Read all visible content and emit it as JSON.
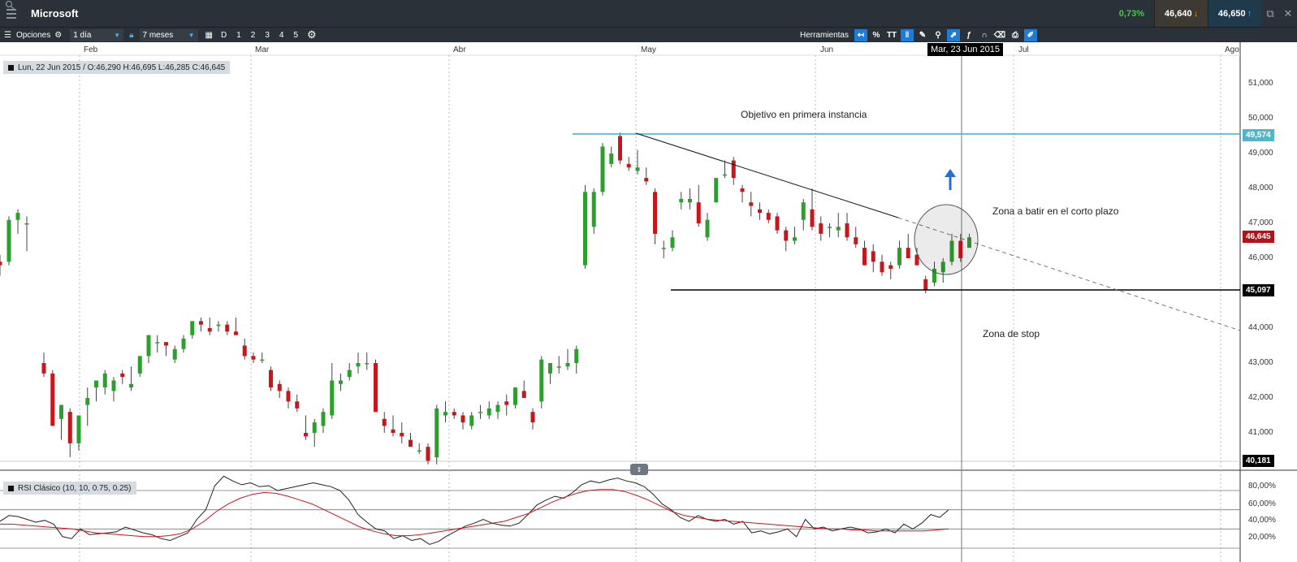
{
  "title_bar": {
    "symbol": "Microsoft",
    "change_pct": "0,73%",
    "bid": "46,640",
    "ask": "46,650"
  },
  "toolbar": {
    "options_label": "Opciones",
    "interval_value": "1 día",
    "range_value": "7 meses",
    "period_buttons": [
      "D",
      "1",
      "2",
      "3",
      "4",
      "5"
    ],
    "tools_label": "Herramientas",
    "percent_label": "%",
    "text_label": "TT"
  },
  "ohlc": {
    "text": "Lun, 22 Jun 2015 / O:46,290   H:46,695   L:46,285   C:46,645"
  },
  "crosshair_date": "Mar, 23 Jun 2015",
  "months": [
    "Feb",
    "Mar",
    "Abr",
    "May",
    "Jun",
    "Jul",
    "Ago"
  ],
  "price_axis": [
    "51,000",
    "50,000",
    "49,000",
    "48,000",
    "47,000",
    "46,000",
    "44,000",
    "43,000",
    "42,000",
    "41,000"
  ],
  "price_tags": {
    "target": "49,574",
    "current": "46,645",
    "stop": "45,097",
    "low": "40,181"
  },
  "annotations": {
    "target": "Objetivo en primera instancia",
    "zone": "Zona a batir en el corto plazo",
    "stop": "Zona de stop"
  },
  "rsi": {
    "label": "RSI Clásico (10, 10, 0.75, 0.25)",
    "axis": [
      "80,00%",
      "60,00%",
      "40,00%",
      "20,00%"
    ]
  },
  "colors": {
    "up": "#2ca02c",
    "down": "#c8161d",
    "target_line": "#37b0c9",
    "tag_target": "#4fb8c8",
    "tag_current": "#b0141b"
  },
  "chart_data": {
    "type": "candlestick",
    "ylim": [
      40,
      51.5
    ],
    "candles": [
      [
        45.9,
        46.1,
        45.5,
        45.8
      ],
      [
        45.9,
        47.2,
        45.8,
        47.1
      ],
      [
        47.1,
        47.4,
        46.7,
        47.3
      ],
      [
        47.0,
        47.2,
        46.2,
        47.0
      ],
      [
        43.0,
        43.3,
        42.6,
        42.7
      ],
      [
        42.7,
        42.8,
        41.2,
        41.2
      ],
      [
        41.4,
        41.8,
        40.8,
        41.8
      ],
      [
        41.6,
        41.7,
        40.3,
        40.7
      ],
      [
        40.7,
        41.5,
        40.5,
        41.5
      ],
      [
        41.8,
        42.3,
        41.2,
        42.0
      ],
      [
        42.3,
        42.5,
        41.9,
        42.5
      ],
      [
        42.3,
        42.8,
        42.1,
        42.7
      ],
      [
        42.2,
        42.6,
        41.9,
        42.5
      ],
      [
        42.7,
        42.8,
        42.4,
        42.6
      ],
      [
        42.3,
        42.9,
        42.2,
        42.4
      ],
      [
        42.7,
        43.2,
        42.6,
        43.2
      ],
      [
        43.2,
        43.8,
        43.0,
        43.8
      ],
      [
        43.6,
        43.8,
        43.3,
        43.6
      ],
      [
        43.6,
        43.6,
        43.2,
        43.5
      ],
      [
        43.1,
        43.5,
        43.0,
        43.4
      ],
      [
        43.4,
        43.8,
        43.3,
        43.7
      ],
      [
        43.8,
        44.2,
        43.7,
        44.2
      ],
      [
        44.2,
        44.3,
        43.9,
        44.1
      ],
      [
        44.0,
        44.3,
        43.8,
        43.9
      ],
      [
        44.1,
        44.2,
        43.9,
        44.1
      ],
      [
        44.1,
        44.2,
        43.8,
        43.9
      ],
      [
        43.9,
        44.3,
        43.8,
        43.8
      ],
      [
        43.5,
        43.7,
        43.1,
        43.2
      ],
      [
        43.2,
        43.3,
        43.0,
        43.1
      ],
      [
        43.1,
        43.3,
        43.0,
        43.1
      ],
      [
        42.8,
        42.9,
        42.2,
        42.3
      ],
      [
        42.4,
        42.5,
        42.0,
        42.2
      ],
      [
        42.2,
        42.3,
        41.7,
        41.9
      ],
      [
        41.9,
        42.1,
        41.6,
        41.7
      ],
      [
        41.0,
        41.5,
        40.8,
        40.9
      ],
      [
        41.0,
        41.4,
        40.6,
        41.3
      ],
      [
        41.2,
        41.7,
        41.0,
        41.6
      ],
      [
        41.5,
        43.0,
        41.4,
        42.5
      ],
      [
        42.4,
        42.7,
        42.2,
        42.5
      ],
      [
        42.6,
        43.0,
        42.5,
        42.8
      ],
      [
        42.9,
        43.3,
        42.7,
        43.0
      ],
      [
        43.0,
        43.3,
        42.8,
        43.0
      ],
      [
        43.0,
        43.1,
        41.6,
        41.6
      ],
      [
        41.4,
        41.6,
        41.0,
        41.2
      ],
      [
        41.1,
        41.5,
        40.9,
        41.0
      ],
      [
        41.0,
        41.3,
        40.7,
        40.9
      ],
      [
        40.8,
        41.0,
        40.6,
        40.6
      ],
      [
        40.5,
        40.7,
        40.4,
        40.5
      ],
      [
        40.6,
        40.7,
        40.1,
        40.2
      ],
      [
        40.3,
        41.8,
        40.1,
        41.7
      ],
      [
        41.5,
        41.9,
        41.3,
        41.6
      ],
      [
        41.6,
        41.7,
        41.4,
        41.5
      ],
      [
        41.5,
        41.6,
        41.1,
        41.3
      ],
      [
        41.2,
        41.6,
        41.1,
        41.5
      ],
      [
        41.6,
        41.8,
        41.4,
        41.6
      ],
      [
        41.5,
        41.9,
        41.4,
        41.7
      ],
      [
        41.6,
        41.9,
        41.4,
        41.8
      ],
      [
        41.9,
        42.1,
        41.5,
        41.8
      ],
      [
        41.8,
        42.3,
        41.7,
        42.3
      ],
      [
        42.2,
        42.5,
        42.0,
        42.0
      ],
      [
        41.6,
        41.7,
        41.1,
        41.3
      ],
      [
        41.9,
        43.2,
        41.7,
        43.1
      ],
      [
        42.7,
        43.0,
        42.4,
        43.0
      ],
      [
        42.9,
        43.2,
        42.7,
        42.9
      ],
      [
        42.9,
        43.4,
        42.8,
        43.0
      ],
      [
        43.0,
        43.5,
        42.7,
        43.4
      ],
      [
        45.8,
        48.1,
        45.7,
        47.9
      ],
      [
        46.9,
        48.0,
        46.7,
        47.9
      ],
      [
        47.9,
        49.3,
        47.8,
        49.2
      ],
      [
        48.7,
        49.2,
        48.6,
        49.0
      ],
      [
        49.5,
        49.6,
        48.7,
        48.8
      ],
      [
        48.7,
        48.9,
        48.5,
        48.6
      ],
      [
        48.5,
        49.1,
        48.4,
        48.6
      ],
      [
        48.3,
        48.6,
        48.1,
        48.2
      ],
      [
        47.9,
        48.0,
        46.4,
        46.7
      ],
      [
        46.3,
        46.5,
        46.0,
        46.3
      ],
      [
        46.3,
        46.8,
        46.2,
        46.6
      ],
      [
        47.6,
        47.9,
        47.4,
        47.7
      ],
      [
        47.6,
        48.0,
        47.4,
        47.7
      ],
      [
        47.6,
        48.1,
        46.9,
        47.0
      ],
      [
        46.6,
        47.3,
        46.5,
        47.1
      ],
      [
        47.6,
        48.3,
        47.6,
        48.3
      ],
      [
        48.4,
        48.8,
        48.3,
        48.4
      ],
      [
        48.8,
        48.9,
        48.1,
        48.3
      ],
      [
        48.0,
        48.1,
        47.6,
        47.9
      ],
      [
        47.6,
        47.9,
        47.2,
        47.5
      ],
      [
        47.4,
        47.6,
        47.1,
        47.3
      ],
      [
        47.3,
        47.4,
        47.0,
        47.1
      ],
      [
        47.2,
        47.3,
        46.7,
        46.8
      ],
      [
        46.8,
        46.9,
        46.2,
        46.5
      ],
      [
        46.5,
        46.9,
        46.4,
        46.6
      ],
      [
        47.1,
        47.7,
        46.8,
        47.6
      ],
      [
        47.4,
        48.0,
        46.8,
        46.9
      ],
      [
        47.0,
        47.2,
        46.5,
        46.7
      ],
      [
        46.9,
        47.0,
        46.6,
        46.9
      ],
      [
        46.8,
        47.3,
        46.6,
        46.9
      ],
      [
        47.0,
        47.3,
        46.5,
        46.6
      ],
      [
        46.6,
        46.9,
        46.3,
        46.4
      ],
      [
        46.3,
        46.5,
        45.8,
        45.8
      ],
      [
        46.2,
        46.4,
        45.6,
        45.9
      ],
      [
        45.9,
        46.1,
        45.5,
        45.6
      ],
      [
        45.8,
        45.9,
        45.4,
        45.7
      ],
      [
        45.8,
        46.5,
        45.7,
        46.3
      ],
      [
        46.3,
        46.7,
        46.0,
        46.0
      ],
      [
        46.1,
        46.3,
        45.8,
        45.8
      ],
      [
        45.4,
        45.5,
        45.0,
        45.1
      ],
      [
        45.3,
        45.9,
        45.2,
        45.7
      ],
      [
        45.6,
        46.0,
        45.3,
        45.9
      ],
      [
        45.9,
        46.7,
        45.8,
        46.5
      ],
      [
        46.5,
        46.7,
        45.9,
        46.0
      ],
      [
        46.3,
        46.7,
        46.3,
        46.6
      ]
    ]
  }
}
